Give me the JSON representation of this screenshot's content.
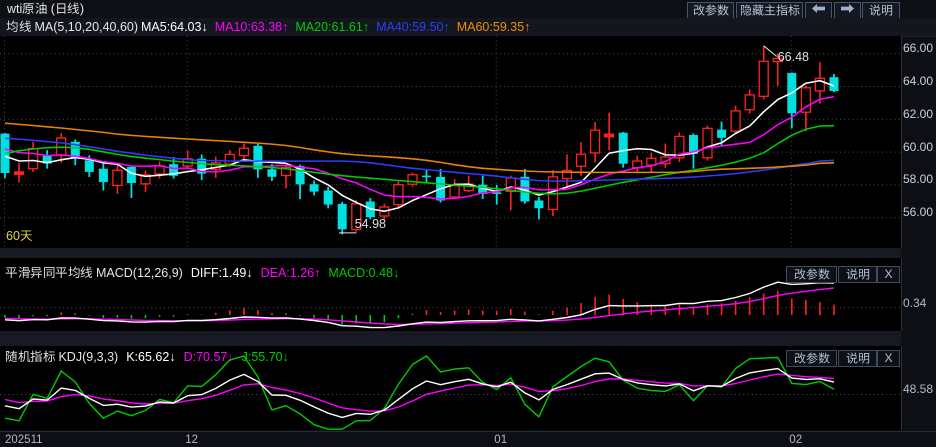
{
  "window": {
    "title": "wti原油 (日线)",
    "toolbar": [
      {
        "id": "change-params",
        "label": "改参数"
      },
      {
        "id": "hide-main-indicator",
        "label": "隐藏主指标"
      },
      {
        "id": "prev",
        "icon": "arrow-left-icon"
      },
      {
        "id": "next",
        "icon": "arrow-right-icon"
      },
      {
        "id": "help",
        "label": "说明"
      }
    ]
  },
  "ma_legend": {
    "prefix": "均线 MA(5,10,20,40,60)",
    "items": [
      {
        "name": "ma5",
        "label": "MA5:64.03",
        "dir": "down",
        "color": "#ffffff"
      },
      {
        "name": "ma10",
        "label": "MA10:63.38",
        "dir": "up",
        "color": "#ff00ff"
      },
      {
        "name": "ma20",
        "label": "MA20:61.61",
        "dir": "up",
        "color": "#00cc00"
      },
      {
        "name": "ma40",
        "label": "MA40:59.50",
        "dir": "up",
        "color": "#2e3cff"
      },
      {
        "name": "ma60",
        "label": "MA60:59.35",
        "dir": "up",
        "color": "#f08f00"
      }
    ]
  },
  "main_chart": {
    "y_ticks": [
      "66.00",
      "64.00",
      "62.00",
      "60.00",
      "58.00",
      "56.00"
    ],
    "period_label": "60天",
    "high_annotation": "66.48",
    "low_annotation": "54.98"
  },
  "macd_panel": {
    "title": "平滑异同平均线 MACD(12,26,9)",
    "items": [
      {
        "name": "diff",
        "label": "DIFF:1.49",
        "dir": "down",
        "color": "#ffffff"
      },
      {
        "name": "dea",
        "label": "DEA:1.26",
        "dir": "up",
        "color": "#ff00ff"
      },
      {
        "name": "macd",
        "label": "MACD:0.48",
        "dir": "down",
        "color": "#00cc00"
      }
    ],
    "buttons": [
      {
        "id": "macd-change-params",
        "label": "改参数"
      },
      {
        "id": "macd-help",
        "label": "说明"
      },
      {
        "id": "macd-close",
        "label": "X"
      }
    ],
    "axis_label": "0.34"
  },
  "kdj_panel": {
    "title": "随机指标 KDJ(9,3,3)",
    "items": [
      {
        "name": "k",
        "label": "K:65.62",
        "dir": "down",
        "color": "#ffffff"
      },
      {
        "name": "d",
        "label": "D:70.57",
        "dir": "down",
        "color": "#ff00ff"
      },
      {
        "name": "j",
        "label": "J:55.70",
        "dir": "down",
        "color": "#00cc00"
      }
    ],
    "buttons": [
      {
        "id": "kdj-change-params",
        "label": "改参数"
      },
      {
        "id": "kdj-help",
        "label": "说明"
      },
      {
        "id": "kdj-close",
        "label": "X"
      }
    ],
    "axis_label": "48.58"
  },
  "x_axis": {
    "labels": [
      {
        "text": "202511",
        "index": 0
      },
      {
        "text": "12",
        "index": 13
      },
      {
        "text": "01",
        "index": 35
      },
      {
        "text": "02",
        "index": 56
      }
    ]
  },
  "chart_data": {
    "type": "candlestick",
    "title": "wti原油 (日线)",
    "ylim": [
      54.5,
      66.9
    ],
    "y_ticks": [
      66,
      64,
      62,
      60,
      58,
      56
    ],
    "candles_ohlc": [
      [
        61.13,
        61.16,
        58.41,
        58.73
      ],
      [
        58.63,
        59.34,
        58.15,
        58.79
      ],
      [
        58.99,
        60.63,
        58.79,
        60.22
      ],
      [
        59.8,
        60.12,
        58.99,
        59.3
      ],
      [
        59.82,
        61.16,
        59.36,
        60.86
      ],
      [
        60.63,
        60.77,
        59.2,
        59.6
      ],
      [
        59.5,
        59.8,
        58.48,
        58.79
      ],
      [
        58.99,
        59.3,
        57.66,
        58.17
      ],
      [
        57.97,
        59.2,
        57.46,
        58.89
      ],
      [
        59.1,
        59.18,
        57.2,
        58.12
      ],
      [
        58.07,
        58.88,
        57.57,
        58.61
      ],
      [
        58.66,
        59.43,
        58.39,
        59.16
      ],
      [
        59.26,
        59.7,
        58.39,
        58.55
      ],
      [
        59.15,
        60.09,
        59.0,
        59.59
      ],
      [
        59.6,
        59.86,
        58.3,
        58.69
      ],
      [
        58.95,
        59.73,
        58.43,
        59.34
      ],
      [
        59.27,
        60.12,
        59.08,
        59.86
      ],
      [
        59.79,
        60.51,
        59.4,
        60.24
      ],
      [
        60.38,
        60.51,
        58.43,
        58.95
      ],
      [
        58.95,
        59.27,
        58.24,
        58.49
      ],
      [
        58.57,
        59.24,
        57.79,
        59.06
      ],
      [
        59.16,
        59.24,
        57.13,
        58.04
      ],
      [
        58.04,
        58.26,
        57.36,
        57.59
      ],
      [
        57.66,
        57.88,
        56.57,
        56.8
      ],
      [
        56.84,
        56.96,
        54.98,
        55.29
      ],
      [
        55.28,
        57.08,
        55.15,
        56.85
      ],
      [
        56.99,
        57.2,
        55.9,
        56.03
      ],
      [
        56.1,
        56.85,
        55.9,
        56.65
      ],
      [
        56.79,
        58.22,
        56.65,
        58.01
      ],
      [
        58.04,
        58.76,
        57.88,
        58.62
      ],
      [
        58.57,
        58.97,
        58.15,
        58.51
      ],
      [
        58.49,
        58.97,
        56.92,
        57.05
      ],
      [
        57.26,
        58.35,
        57.13,
        57.95
      ],
      [
        57.66,
        58.56,
        57.57,
        58.05
      ],
      [
        58.01,
        58.56,
        57.14,
        57.45
      ],
      [
        57.55,
        58.0,
        56.8,
        57.48
      ],
      [
        57.6,
        58.56,
        56.45,
        58.42
      ],
      [
        58.49,
        58.97,
        56.85,
        56.99
      ],
      [
        57.05,
        57.26,
        55.9,
        56.58
      ],
      [
        56.51,
        58.9,
        56.1,
        58.49
      ],
      [
        58.39,
        59.86,
        57.82,
        58.88
      ],
      [
        59.13,
        60.6,
        58.55,
        59.87
      ],
      [
        59.95,
        61.83,
        59.37,
        61.34
      ],
      [
        60.93,
        62.4,
        60.11,
        61.09
      ],
      [
        61.18,
        61.23,
        59.05,
        59.29
      ],
      [
        59.05,
        59.79,
        58.72,
        59.46
      ],
      [
        59.21,
        59.95,
        58.8,
        59.62
      ],
      [
        59.29,
        60.52,
        59.05,
        59.7
      ],
      [
        59.65,
        61.2,
        59.4,
        60.96
      ],
      [
        61.04,
        61.14,
        58.99,
        59.89
      ],
      [
        59.65,
        61.61,
        59.48,
        61.45
      ],
      [
        61.37,
        61.86,
        60.38,
        60.87
      ],
      [
        61.28,
        62.84,
        61.12,
        62.51
      ],
      [
        62.59,
        63.82,
        62.35,
        63.49
      ],
      [
        63.4,
        66.48,
        63.21,
        65.54
      ],
      [
        65.52,
        65.99,
        64.05,
        65.71
      ],
      [
        64.83,
        64.85,
        61.45,
        62.37
      ],
      [
        62.43,
        64.06,
        61.26,
        63.92
      ],
      [
        63.73,
        65.48,
        62.95,
        64.5
      ],
      [
        64.57,
        64.76,
        63.66,
        63.73
      ]
    ],
    "series": [
      {
        "name": "MA5",
        "color": "#ffffff",
        "values": [
          59.75,
          59.46,
          59.49,
          59.36,
          59.53,
          59.67,
          59.56,
          59.34,
          59.26,
          58.71,
          58.52,
          58.59,
          58.67,
          58.81,
          58.92,
          59.07,
          59.21,
          59.54,
          59.42,
          59.38,
          59.32,
          58.96,
          58.43,
          58.0,
          57.36,
          56.93,
          56.54,
          56.39,
          56.6,
          57.05,
          57.4,
          57.77,
          58.03,
          58.04,
          57.8,
          57.6,
          57.87,
          57.68,
          57.38,
          57.59,
          57.87,
          58.16,
          59.03,
          59.93,
          60.09,
          60.21,
          60.16,
          59.83,
          59.81,
          59.93,
          60.32,
          60.57,
          61.14,
          61.59,
          62.46,
          63.21,
          63.61,
          64.2,
          64.36,
          64.03
        ]
      },
      {
        "name": "MA10",
        "color": "#ff00ff",
        "values": [
          60.19,
          59.97,
          59.92,
          59.79,
          59.83,
          59.75,
          59.61,
          59.42,
          59.31,
          59.15,
          59.14,
          59.17,
          59.0,
          59.03,
          58.82,
          58.79,
          58.9,
          59.1,
          59.11,
          59.15,
          59.19,
          59.08,
          58.98,
          58.71,
          58.37,
          58.12,
          57.73,
          57.38,
          57.28,
          57.29,
          57.24,
          57.14,
          57.18,
          57.3,
          57.52,
          57.58,
          57.82,
          57.85,
          57.71,
          57.7,
          57.73,
          58.02,
          58.35,
          58.66,
          58.84,
          59.04,
          59.16,
          59.43,
          59.87,
          60.01,
          60.27,
          60.37,
          60.48,
          60.59,
          61.06,
          61.67,
          62.13,
          62.76,
          63.22,
          63.38
        ]
      },
      {
        "name": "MA20",
        "color": "#00cc00",
        "values": [
          59.91,
          60.08,
          60.19,
          60.27,
          60.3,
          60.27,
          60.17,
          60.02,
          59.86,
          59.73,
          59.63,
          59.54,
          59.45,
          59.37,
          59.3,
          59.24,
          59.2,
          59.16,
          59.11,
          59.06,
          58.98,
          58.88,
          58.77,
          58.66,
          58.56,
          58.48,
          58.41,
          58.34,
          58.27,
          58.2,
          58.13,
          58.06,
          57.99,
          57.92,
          57.85,
          57.77,
          57.67,
          57.57,
          57.49,
          57.46,
          57.5,
          57.62,
          57.79,
          57.98,
          58.16,
          58.31,
          58.47,
          58.62,
          58.77,
          58.9,
          59.04,
          59.2,
          59.39,
          59.63,
          59.96,
          60.52,
          61.03,
          61.39,
          61.59,
          61.61
        ]
      },
      {
        "name": "MA40",
        "color": "#2e3cff",
        "values": [
          60.84,
          60.79,
          60.72,
          60.64,
          60.56,
          60.45,
          60.33,
          60.19,
          60.05,
          59.93,
          59.82,
          59.72,
          59.62,
          59.54,
          59.49,
          59.48,
          59.46,
          59.45,
          59.45,
          59.45,
          59.45,
          59.45,
          59.45,
          59.45,
          59.45,
          59.42,
          59.35,
          59.24,
          59.12,
          59.01,
          58.93,
          58.85,
          58.77,
          58.69,
          58.62,
          58.53,
          58.43,
          58.34,
          58.26,
          58.23,
          58.23,
          58.25,
          58.27,
          58.3,
          58.33,
          58.35,
          58.37,
          58.4,
          58.43,
          58.48,
          58.54,
          58.61,
          58.69,
          58.79,
          58.9,
          59.03,
          59.17,
          59.29,
          59.45,
          59.5
        ]
      },
      {
        "name": "MA60",
        "color": "#ec8200",
        "values": [
          61.76,
          61.69,
          61.62,
          61.54,
          61.47,
          61.38,
          61.29,
          61.2,
          61.1,
          61.02,
          60.96,
          60.9,
          60.85,
          60.8,
          60.75,
          60.7,
          60.65,
          60.6,
          60.55,
          60.49,
          60.4,
          60.28,
          60.14,
          60.01,
          59.9,
          59.83,
          59.77,
          59.72,
          59.66,
          59.59,
          59.5,
          59.37,
          59.23,
          59.11,
          59.01,
          58.95,
          58.89,
          58.85,
          58.81,
          58.79,
          58.78,
          58.77,
          58.76,
          58.76,
          58.76,
          58.76,
          58.76,
          58.76,
          58.76,
          58.82,
          58.9,
          58.96,
          58.98,
          59.01,
          59.04,
          59.09,
          59.14,
          59.21,
          59.32,
          59.35
        ]
      }
    ],
    "up_color": "#ff2222",
    "down_color": "#00e0e0",
    "high_point": {
      "index": 54,
      "value": 66.48
    },
    "low_point": {
      "index": 24,
      "value": 54.98
    },
    "month_tick_indices": [
      0,
      13,
      35,
      56
    ],
    "macd": {
      "diff": [
        -0.222,
        -0.265,
        -0.214,
        -0.224,
        -0.142,
        -0.147,
        -0.194,
        -0.263,
        -0.274,
        -0.323,
        -0.33,
        -0.301,
        -0.309,
        -0.253,
        -0.258,
        -0.221,
        -0.162,
        -0.092,
        -0.108,
        -0.145,
        -0.141,
        -0.193,
        -0.256,
        -0.347,
        -0.499,
        -0.525,
        -0.585,
        -0.591,
        -0.513,
        -0.412,
        -0.334,
        -0.351,
        -0.31,
        -0.269,
        -0.267,
        -0.26,
        -0.2,
        -0.23,
        -0.274,
        -0.199,
        -0.116,
        0.008,
        0.261,
        0.437,
        0.426,
        0.426,
        0.434,
        0.442,
        0.543,
        0.531,
        0.64,
        0.672,
        0.82,
        1.005,
        1.302,
        1.533,
        1.43,
        1.457,
        1.508,
        1.49
      ],
      "dea": [
        -0.156,
        -0.178,
        -0.185,
        -0.193,
        -0.183,
        -0.176,
        -0.179,
        -0.196,
        -0.212,
        -0.234,
        -0.253,
        -0.262,
        -0.272,
        -0.268,
        -0.266,
        -0.257,
        -0.238,
        -0.209,
        -0.188,
        -0.18,
        -0.172,
        -0.176,
        -0.192,
        -0.223,
        -0.278,
        -0.328,
        -0.379,
        -0.421,
        -0.44,
        -0.434,
        -0.414,
        -0.401,
        -0.383,
        -0.36,
        -0.342,
        -0.326,
        -0.3,
        -0.286,
        -0.284,
        -0.267,
        -0.237,
        -0.188,
        -0.114,
        -0.03,
        0.051,
        0.126,
        0.188,
        0.238,
        0.299,
        0.346,
        0.405,
        0.458,
        0.53,
        0.625,
        0.761,
        0.915,
        1.018,
        1.106,
        1.186,
        1.26
      ],
      "hist": [
        -0.132,
        -0.173,
        -0.058,
        -0.062,
        0.116,
        0.083,
        -0.029,
        -0.134,
        -0.125,
        -0.178,
        -0.153,
        -0.076,
        -0.073,
        0.042,
        0.025,
        0.102,
        0.219,
        0.335,
        0.231,
        0.1,
        0.09,
        -0.033,
        -0.128,
        -0.248,
        -0.441,
        -0.395,
        -0.412,
        -0.339,
        -0.146,
        0.064,
        0.229,
        0.145,
        0.21,
        0.262,
        0.214,
        0.185,
        0.286,
        0.16,
        0.027,
        0.194,
        0.345,
        0.554,
        0.849,
        0.96,
        0.75,
        0.6,
        0.493,
        0.407,
        0.488,
        0.371,
        0.48,
        0.54,
        0.66,
        0.83,
        1.01,
        1.13,
        0.77,
        0.71,
        0.6,
        0.48
      ],
      "gridline_value": 0.34
    },
    "kdj": {
      "k": [
        33.21,
        29.23,
        42.41,
        41.01,
        57.35,
        54.29,
        43.28,
        33.71,
        35.36,
        31.32,
        32.75,
        38.33,
        36.92,
        46.93,
        48.47,
        57.0,
        68.36,
        76.19,
        66.44,
        47.96,
        47.54,
        40.67,
        31.65,
        23.04,
        17.23,
        22.76,
        21.5,
        27.31,
        41.92,
        56.43,
        67.11,
        62.03,
        66.17,
        69.42,
        63.11,
        59.23,
        65.54,
        50.84,
        41.28,
        55.64,
        62.18,
        69.61,
        76.98,
        77.94,
        69.34,
        64.49,
        62.07,
        60.43,
        63.14,
        53.69,
        60.52,
        59.82,
        70.55,
        78.21,
        81.39,
        84.17,
        71.15,
        69.38,
        70.16,
        65.62
      ],
      "d": [
        41.74,
        37.57,
        39.18,
        39.79,
        45.64,
        48.53,
        46.78,
        42.42,
        40.07,
        37.15,
        35.68,
        36.56,
        36.68,
        40.1,
        42.89,
        47.59,
        54.51,
        61.74,
        63.31,
        58.19,
        54.64,
        49.98,
        43.87,
        36.93,
        30.36,
        27.83,
        25.72,
        26.25,
        31.47,
        39.79,
        48.9,
        53.27,
        57.57,
        61.52,
        62.05,
        61.11,
        62.59,
        58.67,
        52.87,
        53.79,
        56.59,
        60.93,
        66.28,
        70.17,
        69.89,
        68.09,
        66.08,
        64.2,
        63.84,
        60.46,
        60.48,
        60.26,
        63.69,
        68.53,
        72.82,
        76.6,
        74.78,
        72.98,
        72.04,
        70.57
      ],
      "j": [
        16.16,
        12.55,
        48.87,
        43.44,
        80.76,
        65.82,
        36.29,
        16.29,
        25.94,
        19.65,
        26.87,
        41.86,
        37.39,
        60.59,
        59.63,
        75.81,
        96.06,
        105.09,
        72.71,
        27.51,
        33.34,
        22.04,
        7.2,
        -4.72,
        -9.03,
        12.62,
        13.07,
        29.43,
        62.8,
        89.7,
        103.53,
        79.55,
        83.36,
        85.21,
        65.22,
        55.46,
        71.46,
        35.17,
        18.08,
        59.33,
        73.35,
        86.97,
        98.39,
        93.48,
        68.25,
        57.28,
        54.04,
        52.88,
        61.72,
        40.16,
        60.61,
        58.95,
        84.26,
        97.56,
        98.54,
        99.3,
        63.89,
        62.17,
        66.39,
        55.7
      ],
      "gridline_value": 48.58
    }
  }
}
